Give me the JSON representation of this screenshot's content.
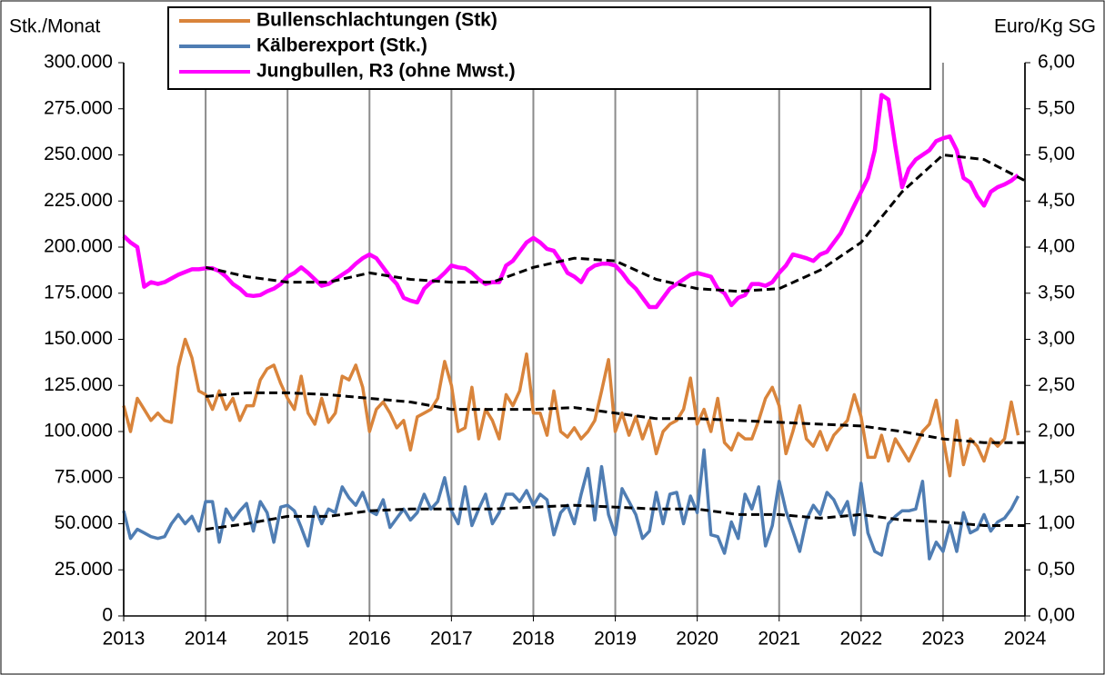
{
  "chart_data": {
    "type": "line",
    "y_label": "Stk./Monat",
    "y2_label": "Euro/Kg SG",
    "xlim": [
      2013,
      2024
    ],
    "xticks": [
      2013,
      2014,
      2015,
      2016,
      2017,
      2018,
      2019,
      2020,
      2021,
      2022,
      2023,
      2024
    ],
    "ylim": [
      0,
      300000
    ],
    "yticks": [
      0,
      {
        "value": 25000,
        "label": "25.000"
      },
      {
        "value": 50000,
        "label": "50.000"
      },
      {
        "value": 75000,
        "label": "75.000"
      },
      {
        "value": 100000,
        "label": "100.000"
      },
      {
        "value": 125000,
        "label": "125.000"
      },
      {
        "value": 150000,
        "label": "150.000"
      },
      {
        "value": 175000,
        "label": "175.000"
      },
      {
        "value": 200000,
        "label": "200.000"
      },
      {
        "value": 225000,
        "label": "225.000"
      },
      {
        "value": 250000,
        "label": "250.000"
      },
      {
        "value": 275000,
        "label": "275.000"
      },
      {
        "value": 300000,
        "label": "300.000"
      }
    ],
    "y2lim": [
      0,
      6
    ],
    "y2ticks": [
      {
        "value": 0,
        "label": "0,00"
      },
      {
        "value": 0.5,
        "label": "0,50"
      },
      {
        "value": 1,
        "label": "1,00"
      },
      {
        "value": 1.5,
        "label": "1,50"
      },
      {
        "value": 2,
        "label": "2,00"
      },
      {
        "value": 2.5,
        "label": "2,50"
      },
      {
        "value": 3,
        "label": "3,00"
      },
      {
        "value": 3.5,
        "label": "3,50"
      },
      {
        "value": 4,
        "label": "4,00"
      },
      {
        "value": 4.5,
        "label": "4,50"
      },
      {
        "value": 5,
        "label": "5,00"
      },
      {
        "value": 5.5,
        "label": "5,50"
      },
      {
        "value": 6,
        "label": "6,00"
      }
    ],
    "grid": "x",
    "legend": "top",
    "x": [
      2013,
      2013.083,
      2013.167,
      2013.25,
      2013.333,
      2013.417,
      2013.5,
      2013.583,
      2013.667,
      2013.75,
      2013.833,
      2013.917,
      2014,
      2014.083,
      2014.167,
      2014.25,
      2014.333,
      2014.417,
      2014.5,
      2014.583,
      2014.667,
      2014.75,
      2014.833,
      2014.917,
      2015,
      2015.083,
      2015.167,
      2015.25,
      2015.333,
      2015.417,
      2015.5,
      2015.583,
      2015.667,
      2015.75,
      2015.833,
      2015.917,
      2016,
      2016.083,
      2016.167,
      2016.25,
      2016.333,
      2016.417,
      2016.5,
      2016.583,
      2016.667,
      2016.75,
      2016.833,
      2016.917,
      2017,
      2017.083,
      2017.167,
      2017.25,
      2017.333,
      2017.417,
      2017.5,
      2017.583,
      2017.667,
      2017.75,
      2017.833,
      2017.917,
      2018,
      2018.083,
      2018.167,
      2018.25,
      2018.333,
      2018.417,
      2018.5,
      2018.583,
      2018.667,
      2018.75,
      2018.833,
      2018.917,
      2019,
      2019.083,
      2019.167,
      2019.25,
      2019.333,
      2019.417,
      2019.5,
      2019.583,
      2019.667,
      2019.75,
      2019.833,
      2019.917,
      2020,
      2020.083,
      2020.167,
      2020.25,
      2020.333,
      2020.417,
      2020.5,
      2020.583,
      2020.667,
      2020.75,
      2020.833,
      2020.917,
      2021,
      2021.083,
      2021.167,
      2021.25,
      2021.333,
      2021.417,
      2021.5,
      2021.583,
      2021.667,
      2021.75,
      2021.833,
      2021.917,
      2022,
      2022.083,
      2022.167,
      2022.25,
      2022.333,
      2022.417,
      2022.5,
      2022.583,
      2022.667,
      2022.75,
      2022.833,
      2022.917,
      2023,
      2023.083,
      2023.167,
      2023.25,
      2023.333,
      2023.417,
      2023.5,
      2023.583,
      2023.667,
      2023.75,
      2023.833,
      2023.917
    ],
    "series": [
      {
        "name": "Bullenschlachtungen (Stk)",
        "color": "#d9843b",
        "axis": "y",
        "values": [
          114000,
          100000,
          118000,
          112000,
          106000,
          110000,
          106000,
          105000,
          135000,
          150000,
          140000,
          122000,
          120000,
          112000,
          122000,
          112000,
          118000,
          106000,
          114000,
          114000,
          128000,
          134000,
          136000,
          126000,
          118000,
          112000,
          130000,
          110000,
          104000,
          118000,
          105000,
          110000,
          130000,
          128000,
          136000,
          124000,
          100000,
          112000,
          116000,
          110000,
          102000,
          106000,
          90000,
          108000,
          110000,
          112000,
          118000,
          138000,
          125000,
          100000,
          102000,
          124000,
          96000,
          112000,
          106000,
          96000,
          120000,
          114000,
          122000,
          142000,
          110000,
          110000,
          98000,
          122000,
          100000,
          97000,
          102000,
          96000,
          100000,
          106000,
          122000,
          139000,
          100000,
          110000,
          98000,
          108000,
          96000,
          106000,
          88000,
          100000,
          104000,
          106000,
          112000,
          129000,
          104000,
          112000,
          100000,
          118000,
          94000,
          90000,
          99000,
          96000,
          96000,
          106000,
          118000,
          124000,
          114000,
          88000,
          100000,
          114000,
          96000,
          92000,
          100000,
          90000,
          98000,
          102000,
          106000,
          120000,
          108000,
          86000,
          86000,
          98000,
          84000,
          96000,
          90000,
          84000,
          92000,
          100000,
          104000,
          117000,
          97000,
          76000,
          106000,
          82000,
          96000,
          92000,
          84000,
          96000,
          92000,
          96000,
          116000,
          98000
        ]
      },
      {
        "name": "Kälberexport (Stk.)",
        "color": "#4f7db3",
        "axis": "y",
        "values": [
          57000,
          42000,
          47000,
          45000,
          43000,
          42000,
          43000,
          50000,
          55000,
          50000,
          54000,
          46000,
          62000,
          62000,
          40000,
          58000,
          52000,
          57000,
          61000,
          46000,
          62000,
          56000,
          40000,
          59000,
          60000,
          57000,
          48000,
          38000,
          59000,
          50000,
          58000,
          56000,
          70000,
          64000,
          60000,
          67000,
          57000,
          55000,
          63000,
          48000,
          53000,
          58000,
          52000,
          56000,
          66000,
          58000,
          62000,
          75000,
          57000,
          50000,
          70000,
          49000,
          58000,
          66000,
          50000,
          56000,
          66000,
          66000,
          62000,
          68000,
          60000,
          66000,
          63000,
          44000,
          56000,
          60000,
          50000,
          66000,
          80000,
          52000,
          81000,
          55000,
          44000,
          69000,
          62000,
          55000,
          42000,
          46000,
          67000,
          50000,
          66000,
          67000,
          50000,
          65000,
          56000,
          90000,
          44000,
          43000,
          34000,
          51000,
          42000,
          66000,
          58000,
          70000,
          38000,
          49000,
          73000,
          57000,
          46000,
          35000,
          52000,
          60000,
          55000,
          67000,
          63000,
          55000,
          62000,
          44000,
          72000,
          45000,
          35000,
          33000,
          50000,
          54000,
          57000,
          57000,
          58000,
          73000,
          31000,
          40000,
          35000,
          49000,
          35000,
          56000,
          45000,
          47000,
          55000,
          46000,
          51000,
          53000,
          58000,
          65000
        ]
      },
      {
        "name": "Jungbullen, R3 (ohne Mwst.)",
        "color": "#ff00ff",
        "axis": "y2",
        "values": [
          4.12,
          4.05,
          4.0,
          3.57,
          3.62,
          3.6,
          3.62,
          3.66,
          3.7,
          3.73,
          3.76,
          3.76,
          3.77,
          3.77,
          3.74,
          3.68,
          3.6,
          3.55,
          3.48,
          3.47,
          3.48,
          3.52,
          3.55,
          3.6,
          3.68,
          3.72,
          3.78,
          3.72,
          3.65,
          3.58,
          3.6,
          3.65,
          3.7,
          3.75,
          3.82,
          3.88,
          3.92,
          3.88,
          3.78,
          3.68,
          3.6,
          3.45,
          3.42,
          3.4,
          3.55,
          3.62,
          3.65,
          3.72,
          3.8,
          3.78,
          3.77,
          3.72,
          3.65,
          3.6,
          3.62,
          3.62,
          3.8,
          3.85,
          3.95,
          4.05,
          4.1,
          4.05,
          3.98,
          3.96,
          3.85,
          3.72,
          3.68,
          3.62,
          3.75,
          3.8,
          3.82,
          3.82,
          3.8,
          3.72,
          3.62,
          3.55,
          3.45,
          3.35,
          3.35,
          3.45,
          3.55,
          3.6,
          3.65,
          3.7,
          3.72,
          3.7,
          3.68,
          3.55,
          3.5,
          3.37,
          3.45,
          3.48,
          3.6,
          3.6,
          3.58,
          3.62,
          3.72,
          3.8,
          3.92,
          3.9,
          3.88,
          3.85,
          3.92,
          3.95,
          4.05,
          4.15,
          4.3,
          4.45,
          4.6,
          4.75,
          5.05,
          5.65,
          5.6,
          5.1,
          4.65,
          4.85,
          4.95,
          5.0,
          5.05,
          5.15,
          5.18,
          5.2,
          5.05,
          4.75,
          4.7,
          4.55,
          4.45,
          4.6,
          4.65,
          4.68,
          4.72,
          4.78
        ]
      },
      {
        "color": "#000000",
        "axis": "y",
        "style": "dashed",
        "x": [
          2014,
          2014.5,
          2015,
          2015.5,
          2016,
          2016.5,
          2017,
          2017.5,
          2018,
          2018.5,
          2019,
          2019.5,
          2020,
          2020.5,
          2021,
          2021.5,
          2022,
          2022.5,
          2023,
          2023.5,
          2024
        ],
        "values": [
          119000,
          121000,
          121000,
          120000,
          118000,
          116000,
          112000,
          112000,
          112000,
          113000,
          110000,
          107000,
          107000,
          106000,
          105000,
          104000,
          103000,
          100000,
          96000,
          94000,
          94000
        ]
      },
      {
        "color": "#000000",
        "axis": "y",
        "style": "dashed",
        "x": [
          2014,
          2014.5,
          2015,
          2015.5,
          2016,
          2016.5,
          2017,
          2017.5,
          2018,
          2018.5,
          2019,
          2019.5,
          2020,
          2020.5,
          2021,
          2021.5,
          2022,
          2022.5,
          2023,
          2023.5,
          2024
        ],
        "values": [
          47000,
          50000,
          54000,
          54000,
          57000,
          58000,
          58000,
          58000,
          59000,
          60000,
          59000,
          58000,
          58000,
          55000,
          55000,
          53000,
          55000,
          52000,
          51000,
          49000,
          49000
        ]
      },
      {
        "color": "#000000",
        "axis": "y2",
        "style": "dashed",
        "x": [
          2014,
          2014.5,
          2015,
          2015.5,
          2016,
          2016.5,
          2017,
          2017.5,
          2018,
          2018.5,
          2019,
          2019.5,
          2020,
          2020.5,
          2021,
          2021.5,
          2022,
          2022.5,
          2023,
          2023.5,
          2024
        ],
        "values": [
          3.78,
          3.68,
          3.62,
          3.62,
          3.72,
          3.65,
          3.62,
          3.62,
          3.78,
          3.88,
          3.85,
          3.65,
          3.55,
          3.52,
          3.55,
          3.75,
          4.05,
          4.6,
          5.0,
          4.95,
          4.72
        ]
      }
    ]
  }
}
